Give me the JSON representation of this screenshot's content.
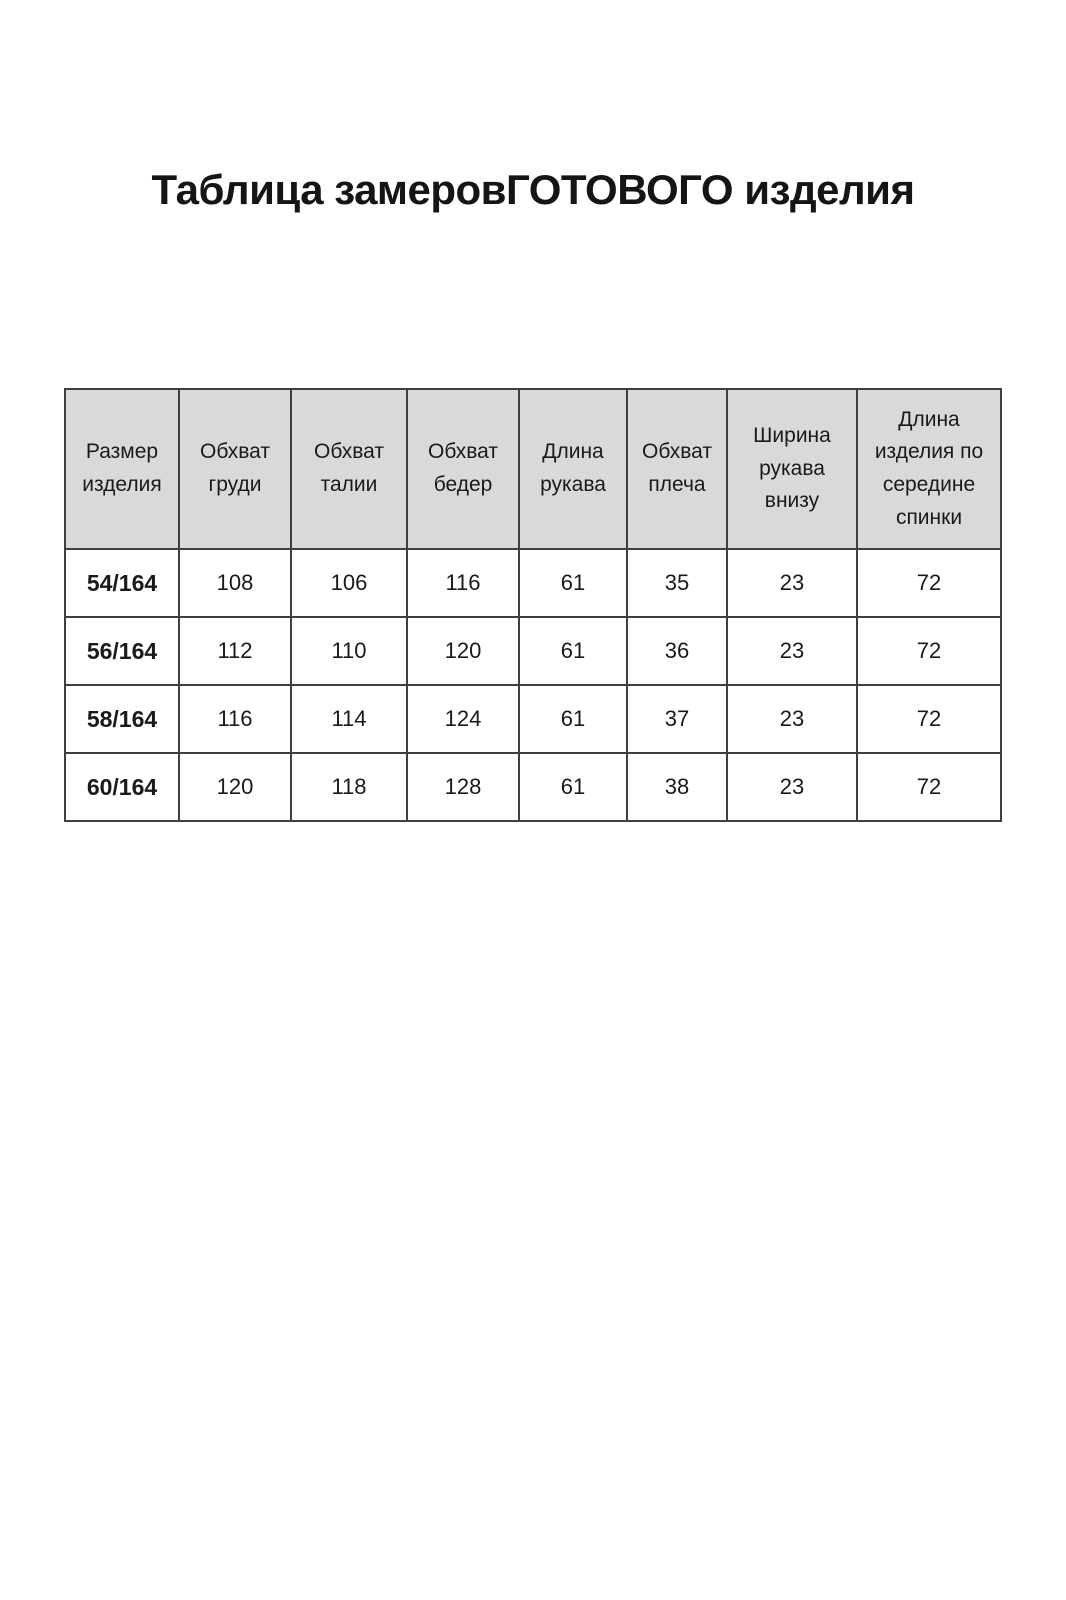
{
  "page": {
    "title": "Таблица замеровГОТОВОГО изделия"
  },
  "table": {
    "headers": [
      "Размер изделия",
      "Обхват груди",
      "Обхват талии",
      "Обхват бедер",
      "Длина рукава",
      "Обхват плеча",
      "Ширина рукава внизу",
      "Длина изделия по середине спинки"
    ],
    "rows": [
      {
        "size": "54/164",
        "values": [
          "108",
          "106",
          "116",
          "61",
          "35",
          "23",
          "72"
        ]
      },
      {
        "size": "56/164",
        "values": [
          "112",
          "110",
          "120",
          "61",
          "36",
          "23",
          "72"
        ]
      },
      {
        "size": "58/164",
        "values": [
          "116",
          "114",
          "124",
          "61",
          "37",
          "23",
          "72"
        ]
      },
      {
        "size": "60/164",
        "values": [
          "120",
          "118",
          "128",
          "61",
          "38",
          "23",
          "72"
        ]
      }
    ]
  },
  "colors": {
    "header_bg": "#d9d9d9",
    "border": "#404040",
    "text": "#1a1a1a"
  }
}
